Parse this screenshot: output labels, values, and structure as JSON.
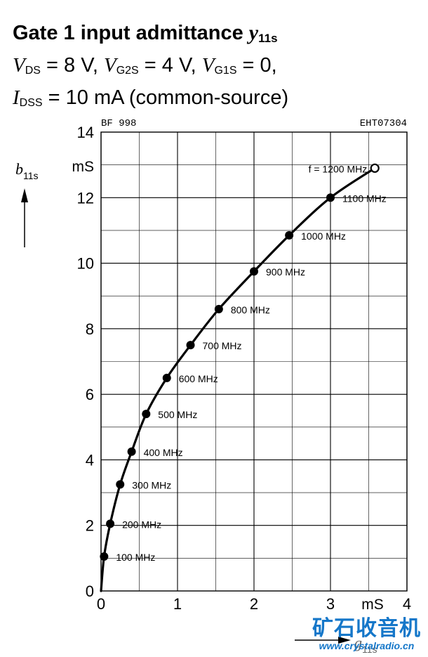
{
  "title": {
    "text": "Gate 1 input admittance ",
    "symbol": "y",
    "symbol_sub": "11s"
  },
  "conditions": {
    "line1": [
      {
        "sym": "V",
        "sub": "DS",
        "rest": " = 8 V,  "
      },
      {
        "sym": "V",
        "sub": "G2S",
        "rest": " = 4 V,   "
      },
      {
        "sym": "V",
        "sub": "G1S",
        "rest": " = 0,"
      }
    ],
    "line2": [
      {
        "sym": "I",
        "sub": "DSS",
        "rest": " = 10 mA (common-source)"
      }
    ]
  },
  "chart_labels": {
    "device": "BF  998",
    "code": "EHT07304",
    "y_symbol": "b",
    "y_symbol_sub": "11s",
    "y_unit": "mS",
    "x_unit": "mS",
    "x_symbol": "g",
    "x_symbol_sub": "11s"
  },
  "chart_data": {
    "type": "line",
    "xlim": [
      0,
      4
    ],
    "ylim": [
      0,
      14
    ],
    "xticks": [
      "0",
      "1",
      "2",
      "3",
      "4"
    ],
    "yticks": [
      "0",
      "2",
      "4",
      "6",
      "8",
      "10",
      "12",
      "14"
    ],
    "grid": true,
    "points": [
      {
        "x": 0.0,
        "y": 0.0,
        "label": ""
      },
      {
        "x": 0.04,
        "y": 1.05,
        "label": "100 MHz"
      },
      {
        "x": 0.12,
        "y": 2.05,
        "label": "200 MHz"
      },
      {
        "x": 0.25,
        "y": 3.25,
        "label": "300 MHz"
      },
      {
        "x": 0.4,
        "y": 4.25,
        "label": "400 MHz"
      },
      {
        "x": 0.59,
        "y": 5.4,
        "label": "500 MHz"
      },
      {
        "x": 0.86,
        "y": 6.5,
        "label": "600 MHz"
      },
      {
        "x": 1.17,
        "y": 7.5,
        "label": "700 MHz"
      },
      {
        "x": 1.54,
        "y": 8.6,
        "label": "800 MHz"
      },
      {
        "x": 2.0,
        "y": 9.75,
        "label": "900 MHz"
      },
      {
        "x": 2.46,
        "y": 10.85,
        "label": "1000 MHz"
      },
      {
        "x": 3.0,
        "y": 12.0,
        "label": "1100 MHz"
      },
      {
        "x": 3.58,
        "y": 12.9,
        "label": "f = 1200 MHz"
      }
    ]
  },
  "watermark": {
    "cn": "矿石收音机",
    "url": "www.crystalradio.cn"
  }
}
